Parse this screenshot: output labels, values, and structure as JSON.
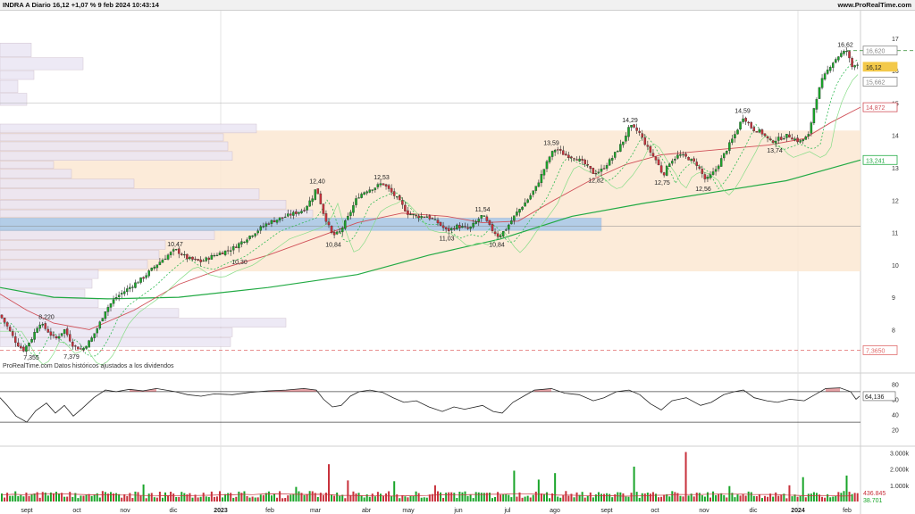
{
  "header": {
    "title": "INDRA A Diario 16,12 +1,07 % 9 feb 2024 10:43:14",
    "brand": "www.ProRealTime.com"
  },
  "colors": {
    "up": "#1aa52a",
    "down": "#c8323c",
    "sma200": "#22aa44",
    "sma50": "#d05058",
    "band": "#fbe8d2",
    "vprofile": "#ebe6f4",
    "poc": "#9fc4e4",
    "badge_price": "#f3c94a",
    "level_line": "#e06b6b"
  },
  "chart_data": [
    {
      "type": "candlestick",
      "id": "price",
      "source_note": "ProRealTime.com  Datos históricos ajustados a los dividendos",
      "x_labels": [
        "sept",
        "oct",
        "nov",
        "dic",
        "2023",
        "feb",
        "mar",
        "abr",
        "may",
        "jun",
        "jul",
        "ago",
        "sept",
        "oct",
        "nov",
        "dic",
        "2024",
        "feb"
      ],
      "y_ticks": [
        8,
        9,
        10,
        11,
        12,
        13,
        14,
        15,
        16,
        17
      ],
      "ylim": [
        7.1,
        17.3
      ],
      "price_path": [
        [
          0,
          8.45
        ],
        [
          8,
          8.1
        ],
        [
          18,
          7.6
        ],
        [
          26,
          7.36
        ],
        [
          35,
          7.7
        ],
        [
          44,
          8.22
        ],
        [
          52,
          8.0
        ],
        [
          62,
          7.7
        ],
        [
          72,
          8.0
        ],
        [
          82,
          7.5
        ],
        [
          92,
          7.38
        ],
        [
          102,
          7.7
        ],
        [
          110,
          8.1
        ],
        [
          118,
          8.6
        ],
        [
          130,
          9.0
        ],
        [
          145,
          9.3
        ],
        [
          160,
          9.6
        ],
        [
          175,
          10.0
        ],
        [
          188,
          10.3
        ],
        [
          196,
          10.47
        ],
        [
          210,
          10.2
        ],
        [
          225,
          10.1
        ],
        [
          240,
          10.3
        ],
        [
          260,
          10.5
        ],
        [
          280,
          10.9
        ],
        [
          300,
          11.3
        ],
        [
          320,
          11.5
        ],
        [
          340,
          11.7
        ],
        [
          350,
          12.1
        ],
        [
          354,
          12.4
        ],
        [
          362,
          11.6
        ],
        [
          372,
          10.9
        ],
        [
          380,
          11.0
        ],
        [
          390,
          11.5
        ],
        [
          400,
          12.1
        ],
        [
          410,
          12.3
        ],
        [
          420,
          12.4
        ],
        [
          428,
          12.53
        ],
        [
          436,
          12.3
        ],
        [
          446,
          12.0
        ],
        [
          456,
          11.6
        ],
        [
          466,
          11.5
        ],
        [
          478,
          11.5
        ],
        [
          490,
          11.3
        ],
        [
          500,
          11.05
        ],
        [
          512,
          11.2
        ],
        [
          525,
          11.1
        ],
        [
          540,
          11.54
        ],
        [
          550,
          11.1
        ],
        [
          558,
          10.88
        ],
        [
          566,
          11.1
        ],
        [
          578,
          11.6
        ],
        [
          590,
          12.0
        ],
        [
          600,
          12.4
        ],
        [
          608,
          12.9
        ],
        [
          616,
          13.4
        ],
        [
          622,
          13.59
        ],
        [
          632,
          13.4
        ],
        [
          645,
          13.3
        ],
        [
          655,
          13.1
        ],
        [
          664,
          12.84
        ],
        [
          672,
          12.9
        ],
        [
          685,
          13.3
        ],
        [
          697,
          13.8
        ],
        [
          705,
          14.29
        ],
        [
          715,
          14.1
        ],
        [
          725,
          13.6
        ],
        [
          735,
          13.2
        ],
        [
          742,
          12.77
        ],
        [
          750,
          13.2
        ],
        [
          760,
          13.4
        ],
        [
          770,
          13.3
        ],
        [
          780,
          13.1
        ],
        [
          790,
          12.6
        ],
        [
          800,
          12.9
        ],
        [
          810,
          13.4
        ],
        [
          822,
          14.0
        ],
        [
          832,
          14.59
        ],
        [
          842,
          14.2
        ],
        [
          852,
          14.1
        ],
        [
          862,
          13.8
        ],
        [
          872,
          13.9
        ],
        [
          882,
          14.0
        ],
        [
          895,
          13.8
        ],
        [
          905,
          14.0
        ],
        [
          912,
          15.0
        ],
        [
          920,
          15.7
        ],
        [
          930,
          16.2
        ],
        [
          940,
          16.5
        ],
        [
          948,
          16.62
        ],
        [
          953,
          16.1
        ],
        [
          958,
          16.25
        ],
        [
          962,
          16.12
        ]
      ],
      "annotations": [
        {
          "x": 35,
          "y": 7.355,
          "label": "7,355"
        },
        {
          "x": 52,
          "y": 8.22,
          "label": "8,220"
        },
        {
          "x": 80,
          "y": 7.379,
          "label": "7,379"
        },
        {
          "x": 196,
          "y": 10.47,
          "label": "10,47"
        },
        {
          "x": 268,
          "y": 10.3,
          "label": "10,30"
        },
        {
          "x": 355,
          "y": 12.4,
          "label": "12,40"
        },
        {
          "x": 373,
          "y": 10.84,
          "label": "10,84"
        },
        {
          "x": 427,
          "y": 12.53,
          "label": "12,53"
        },
        {
          "x": 500,
          "y": 11.03,
          "label": "11,03"
        },
        {
          "x": 540,
          "y": 11.54,
          "label": "11,54"
        },
        {
          "x": 556,
          "y": 10.84,
          "label": "10,84"
        },
        {
          "x": 617,
          "y": 13.59,
          "label": "13,59"
        },
        {
          "x": 667,
          "y": 12.82,
          "label": "12,82"
        },
        {
          "x": 705,
          "y": 14.29,
          "label": "14,29"
        },
        {
          "x": 741,
          "y": 12.75,
          "label": "12,75"
        },
        {
          "x": 787,
          "y": 12.56,
          "label": "12,56"
        },
        {
          "x": 831,
          "y": 14.59,
          "label": "14,59"
        },
        {
          "x": 867,
          "y": 13.74,
          "label": "13,74"
        },
        {
          "x": 946,
          "y": 16.62,
          "label": "16,62"
        }
      ],
      "right_badges": [
        {
          "value": 16.62,
          "label": "16,620",
          "color": "#888888"
        },
        {
          "value": 16.12,
          "label": "16,12",
          "color": "#f3c94a"
        },
        {
          "value": 15.66,
          "label": "15,662",
          "color": "#888888"
        },
        {
          "value": 14.87,
          "label": "14,872",
          "color": "#d05058"
        },
        {
          "value": 13.24,
          "label": "13,241",
          "color": "#22aa44"
        },
        {
          "value": 7.365,
          "label": "7,3650",
          "color": "#e06b6b"
        }
      ],
      "sma200": [
        [
          0,
          9.3
        ],
        [
          60,
          9.0
        ],
        [
          120,
          8.95
        ],
        [
          200,
          9.0
        ],
        [
          300,
          9.3
        ],
        [
          400,
          9.7
        ],
        [
          480,
          10.3
        ],
        [
          560,
          10.8
        ],
        [
          640,
          11.5
        ],
        [
          720,
          11.9
        ],
        [
          800,
          12.25
        ],
        [
          880,
          12.6
        ],
        [
          963,
          13.24
        ]
      ],
      "sma50": [
        [
          0,
          9.1
        ],
        [
          30,
          8.6
        ],
        [
          60,
          8.2
        ],
        [
          100,
          8.0
        ],
        [
          150,
          8.6
        ],
        [
          200,
          9.4
        ],
        [
          250,
          9.9
        ],
        [
          300,
          10.3
        ],
        [
          350,
          10.8
        ],
        [
          400,
          11.3
        ],
        [
          450,
          11.6
        ],
        [
          500,
          11.5
        ],
        [
          540,
          11.3
        ],
        [
          580,
          11.35
        ],
        [
          620,
          12.0
        ],
        [
          660,
          12.6
        ],
        [
          700,
          13.1
        ],
        [
          740,
          13.4
        ],
        [
          780,
          13.5
        ],
        [
          820,
          13.6
        ],
        [
          860,
          13.7
        ],
        [
          900,
          13.9
        ],
        [
          930,
          14.4
        ],
        [
          963,
          14.87
        ]
      ],
      "value_zone": [
        9.8,
        14.15
      ],
      "poc_zone": [
        11.05,
        11.45
      ],
      "volume_profile": [
        [
          16.85,
          16.4,
          35
        ],
        [
          16.4,
          16.0,
          93
        ],
        [
          16.0,
          15.7,
          38
        ],
        [
          15.7,
          15.3,
          20
        ],
        [
          15.3,
          14.9,
          30
        ],
        [
          14.35,
          14.05,
          287
        ],
        [
          14.05,
          13.8,
          250
        ],
        [
          13.8,
          13.5,
          255
        ],
        [
          13.5,
          13.2,
          260
        ],
        [
          13.2,
          12.95,
          60
        ],
        [
          12.95,
          12.65,
          80
        ],
        [
          12.65,
          12.35,
          150
        ],
        [
          12.35,
          12.0,
          290
        ],
        [
          12.0,
          11.7,
          320
        ],
        [
          11.7,
          11.45,
          350
        ],
        [
          11.45,
          11.05,
          673
        ],
        [
          11.05,
          10.75,
          240
        ],
        [
          10.75,
          10.45,
          185
        ],
        [
          10.45,
          10.15,
          178
        ],
        [
          10.15,
          9.85,
          165
        ],
        [
          9.85,
          9.55,
          110
        ],
        [
          9.55,
          9.25,
          103
        ],
        [
          9.25,
          8.95,
          95
        ],
        [
          8.95,
          8.65,
          110
        ],
        [
          8.65,
          8.35,
          200
        ],
        [
          8.35,
          8.05,
          320
        ],
        [
          8.05,
          7.75,
          260
        ],
        [
          7.75,
          7.45,
          258
        ]
      ]
    },
    {
      "type": "line",
      "id": "oscillator",
      "y_ticks": [
        20,
        40,
        60,
        80
      ],
      "ylim": [
        8,
        92
      ],
      "bands": [
        30,
        70
      ],
      "last_label": "64,136",
      "values": [
        [
          0,
          62
        ],
        [
          8,
          52
        ],
        [
          18,
          38
        ],
        [
          30,
          30
        ],
        [
          40,
          45
        ],
        [
          52,
          55
        ],
        [
          62,
          42
        ],
        [
          72,
          52
        ],
        [
          82,
          38
        ],
        [
          92,
          48
        ],
        [
          105,
          62
        ],
        [
          118,
          72
        ],
        [
          130,
          70
        ],
        [
          145,
          73
        ],
        [
          160,
          71
        ],
        [
          175,
          74
        ],
        [
          196,
          70
        ],
        [
          210,
          66
        ],
        [
          225,
          64
        ],
        [
          240,
          67
        ],
        [
          260,
          66
        ],
        [
          280,
          69
        ],
        [
          300,
          71
        ],
        [
          320,
          72
        ],
        [
          340,
          74
        ],
        [
          354,
          72
        ],
        [
          362,
          60
        ],
        [
          372,
          50
        ],
        [
          382,
          52
        ],
        [
          392,
          64
        ],
        [
          402,
          70
        ],
        [
          414,
          72
        ],
        [
          428,
          69
        ],
        [
          440,
          62
        ],
        [
          452,
          56
        ],
        [
          466,
          58
        ],
        [
          480,
          50
        ],
        [
          495,
          44
        ],
        [
          508,
          50
        ],
        [
          520,
          47
        ],
        [
          540,
          52
        ],
        [
          552,
          44
        ],
        [
          562,
          42
        ],
        [
          574,
          56
        ],
        [
          586,
          64
        ],
        [
          598,
          72
        ],
        [
          608,
          73
        ],
        [
          617,
          74
        ],
        [
          632,
          68
        ],
        [
          648,
          66
        ],
        [
          664,
          58
        ],
        [
          676,
          62
        ],
        [
          690,
          70
        ],
        [
          704,
          72
        ],
        [
          716,
          66
        ],
        [
          728,
          54
        ],
        [
          740,
          46
        ],
        [
          752,
          58
        ],
        [
          768,
          62
        ],
        [
          784,
          52
        ],
        [
          796,
          56
        ],
        [
          810,
          66
        ],
        [
          822,
          70
        ],
        [
          832,
          72
        ],
        [
          844,
          62
        ],
        [
          858,
          58
        ],
        [
          870,
          56
        ],
        [
          884,
          60
        ],
        [
          900,
          58
        ],
        [
          912,
          66
        ],
        [
          924,
          74
        ],
        [
          940,
          75
        ],
        [
          952,
          70
        ],
        [
          958,
          60
        ],
        [
          962,
          64.1
        ]
      ]
    },
    {
      "type": "bar",
      "id": "volume",
      "y_ticks": [
        "1.000k",
        "2.000k",
        "3.000k"
      ],
      "ylim": [
        0,
        3300
      ],
      "ma_label": "436.845",
      "last_label": "38.701",
      "spikes": [
        [
          365,
          2300,
          "down"
        ],
        [
          765,
          3050,
          "down"
        ],
        [
          708,
          2150,
          "up"
        ],
        [
          572,
          1900,
          "up"
        ],
        [
          620,
          1750,
          "up"
        ],
        [
          896,
          1500,
          "up"
        ],
        [
          600,
          1350,
          "up"
        ],
        [
          440,
          1250,
          "up"
        ],
        [
          388,
          1300,
          "down"
        ],
        [
          160,
          1050,
          "up"
        ],
        [
          945,
          1600,
          "up"
        ],
        [
          486,
          1000,
          "down"
        ],
        [
          330,
          900,
          "up"
        ],
        [
          815,
          950,
          "up"
        ],
        [
          880,
          1000,
          "down"
        ]
      ]
    }
  ]
}
